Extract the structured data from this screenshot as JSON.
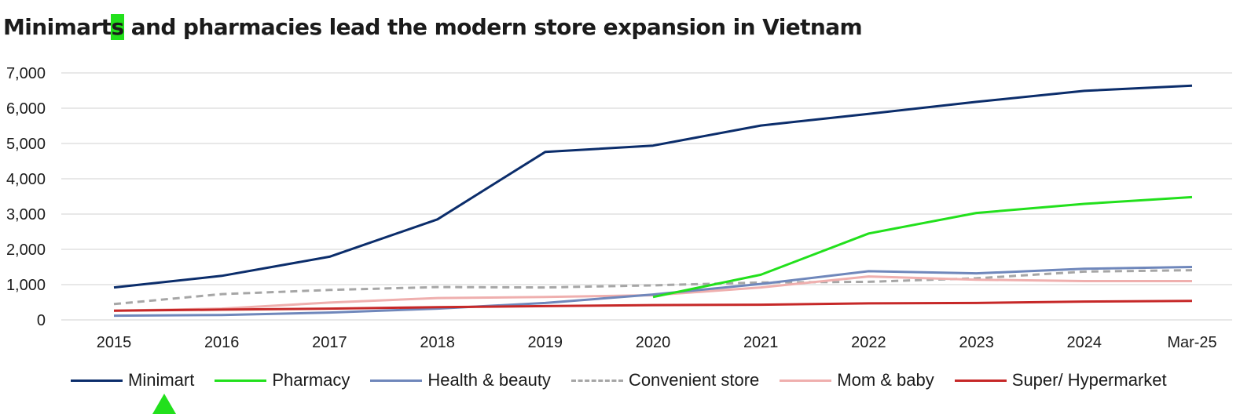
{
  "title": {
    "before": "Minimart",
    "highlight": "s",
    "after": " and pharmacies lead the modern store expansion in Vietnam"
  },
  "colors": {
    "highlight": "#22e01c",
    "gridline": "#d9d9d9",
    "axis_text": "#1b1b1b"
  },
  "legend_items": [
    {
      "label": "Minimart",
      "color": "#0b2d6b",
      "dashed": false
    },
    {
      "label": "Pharmacy",
      "color": "#22e01c",
      "dashed": false
    },
    {
      "label": "Health & beauty",
      "color": "#6f87bb",
      "dashed": false
    },
    {
      "label": "Convenient store",
      "color": "#a6a6a6",
      "dashed": true
    },
    {
      "label": "Mom & baby",
      "color": "#efafae",
      "dashed": false
    },
    {
      "label": "Super/ Hypermarket",
      "color": "#c62828",
      "dashed": false
    }
  ],
  "cursor_icon": "arrow-up-cursor-icon",
  "chart_data": {
    "type": "line",
    "title": "Minimarts and pharmacies lead the modern store expansion in Vietnam",
    "categories": [
      "2015",
      "2016",
      "2017",
      "2018",
      "2019",
      "2020",
      "2021",
      "2022",
      "2023",
      "2024",
      "Mar-25"
    ],
    "ylim": [
      0,
      7000
    ],
    "yticks": [
      0,
      1000,
      2000,
      3000,
      4000,
      5000,
      6000,
      7000
    ],
    "ytick_labels": [
      "0",
      "1,000",
      "2,000",
      "3,000",
      "4,000",
      "5,000",
      "6,000",
      "7,000"
    ],
    "grid": true,
    "legend_position": "bottom",
    "series": [
      {
        "name": "Convenient store",
        "color": "#a6a6a6",
        "dashed": true,
        "width": 3,
        "values": [
          450,
          730,
          850,
          930,
          920,
          980,
          1060,
          1080,
          1180,
          1370,
          1410
        ]
      },
      {
        "name": "Mom & baby",
        "color": "#efafae",
        "dashed": false,
        "width": 3,
        "values": [
          260,
          320,
          490,
          620,
          650,
          700,
          920,
          1230,
          1140,
          1100,
          1100
        ]
      },
      {
        "name": "Health & beauty",
        "color": "#6f87bb",
        "dashed": false,
        "width": 3,
        "values": [
          120,
          140,
          210,
          320,
          480,
          720,
          1020,
          1380,
          1320,
          1450,
          1500
        ]
      },
      {
        "name": "Pharmacy",
        "color": "#22e01c",
        "dashed": false,
        "width": 3,
        "values": [
          null,
          null,
          null,
          null,
          null,
          650,
          1280,
          2450,
          3030,
          3290,
          3480
        ]
      },
      {
        "name": "Super/ Hypermarket",
        "color": "#c62828",
        "dashed": false,
        "width": 3,
        "values": [
          260,
          290,
          320,
          360,
          390,
          420,
          430,
          470,
          480,
          520,
          540
        ]
      },
      {
        "name": "Minimart",
        "color": "#0b2d6b",
        "dashed": false,
        "width": 3,
        "values": [
          920,
          1250,
          1790,
          2850,
          4760,
          4940,
          5510,
          5840,
          6180,
          6490,
          6640
        ]
      }
    ]
  }
}
